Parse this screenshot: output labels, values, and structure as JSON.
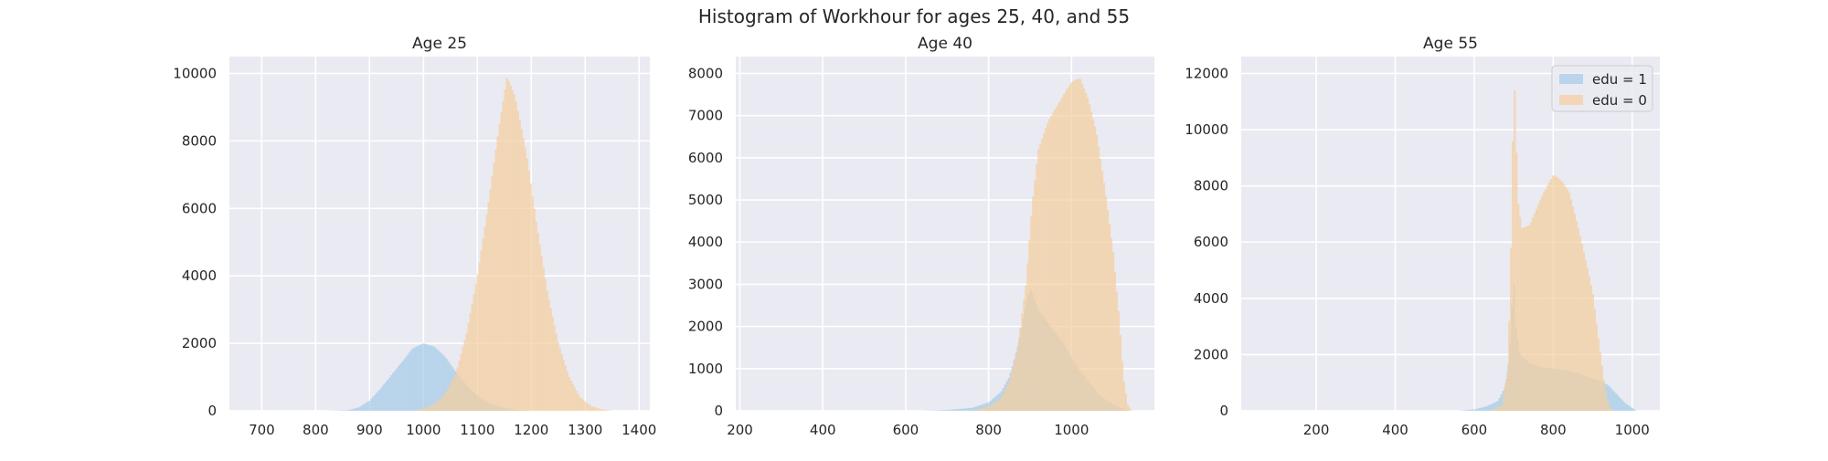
{
  "figure": {
    "suptitle": "Histogram of Workhour for ages 25, 40, and 55",
    "colors": {
      "background": "#eaeaf2",
      "grid": "#ffffff",
      "edu1": "#a6cce8",
      "edu0": "#f5cf9f",
      "overlap": "#b9c6a6",
      "text": "#262626"
    }
  },
  "chart_data": [
    {
      "type": "histogram",
      "title": "Age 25",
      "xlabel": "",
      "ylabel": "",
      "xlim": [
        640,
        1420
      ],
      "ylim": [
        0,
        10500
      ],
      "xticks": [
        700,
        800,
        900,
        1000,
        1100,
        1200,
        1300,
        1400
      ],
      "yticks": [
        0,
        2000,
        4000,
        6000,
        8000,
        10000
      ],
      "grid": true,
      "series": [
        {
          "name": "edu = 1",
          "color": "#a6cce8",
          "points": [
            [
              820,
              0
            ],
            [
              860,
              20
            ],
            [
              880,
              100
            ],
            [
              900,
              300
            ],
            [
              920,
              650
            ],
            [
              940,
              1050
            ],
            [
              960,
              1450
            ],
            [
              980,
              1850
            ],
            [
              1000,
              2000
            ],
            [
              1020,
              1900
            ],
            [
              1040,
              1600
            ],
            [
              1060,
              1150
            ],
            [
              1080,
              750
            ],
            [
              1100,
              450
            ],
            [
              1120,
              250
            ],
            [
              1140,
              120
            ],
            [
              1160,
              60
            ],
            [
              1180,
              20
            ],
            [
              1200,
              0
            ]
          ]
        },
        {
          "name": "edu = 0",
          "color": "#f5cf9f",
          "points": [
            [
              980,
              0
            ],
            [
              1000,
              60
            ],
            [
              1020,
              200
            ],
            [
              1040,
              500
            ],
            [
              1060,
              1100
            ],
            [
              1080,
              2300
            ],
            [
              1100,
              4000
            ],
            [
              1120,
              6100
            ],
            [
              1140,
              8400
            ],
            [
              1155,
              9900
            ],
            [
              1170,
              9300
            ],
            [
              1190,
              7700
            ],
            [
              1210,
              5500
            ],
            [
              1230,
              3500
            ],
            [
              1250,
              2000
            ],
            [
              1270,
              1000
            ],
            [
              1290,
              400
            ],
            [
              1310,
              150
            ],
            [
              1330,
              40
            ],
            [
              1350,
              0
            ]
          ]
        }
      ]
    },
    {
      "type": "histogram",
      "title": "Age 40",
      "xlabel": "",
      "ylabel": "",
      "xlim": [
        190,
        1200
      ],
      "ylim": [
        0,
        8400
      ],
      "xticks": [
        200,
        400,
        600,
        800,
        1000
      ],
      "yticks": [
        0,
        1000,
        2000,
        3000,
        4000,
        5000,
        6000,
        7000,
        8000
      ],
      "grid": true,
      "series": [
        {
          "name": "edu = 1",
          "color": "#a6cce8",
          "points": [
            [
              640,
              0
            ],
            [
              700,
              20
            ],
            [
              760,
              70
            ],
            [
              800,
              200
            ],
            [
              830,
              450
            ],
            [
              850,
              800
            ],
            [
              870,
              1500
            ],
            [
              890,
              2500
            ],
            [
              900,
              2900
            ],
            [
              920,
              2400
            ],
            [
              950,
              2000
            ],
            [
              980,
              1600
            ],
            [
              1010,
              1100
            ],
            [
              1040,
              700
            ],
            [
              1070,
              350
            ],
            [
              1100,
              150
            ],
            [
              1120,
              60
            ],
            [
              1140,
              0
            ]
          ]
        },
        {
          "name": "edu = 0",
          "color": "#f5cf9f",
          "points": [
            [
              760,
              0
            ],
            [
              800,
              100
            ],
            [
              830,
              300
            ],
            [
              850,
              700
            ],
            [
              870,
              1500
            ],
            [
              890,
              3000
            ],
            [
              905,
              4900
            ],
            [
              920,
              6200
            ],
            [
              945,
              6900
            ],
            [
              975,
              7400
            ],
            [
              1000,
              7800
            ],
            [
              1020,
              7900
            ],
            [
              1040,
              7400
            ],
            [
              1060,
              6600
            ],
            [
              1080,
              5300
            ],
            [
              1100,
              3800
            ],
            [
              1115,
              2200
            ],
            [
              1125,
              800
            ],
            [
              1135,
              150
            ],
            [
              1145,
              0
            ]
          ]
        }
      ]
    },
    {
      "type": "histogram",
      "title": "Age 55",
      "xlabel": "",
      "ylabel": "",
      "xlim": [
        10,
        1070
      ],
      "ylim": [
        0,
        12600
      ],
      "xticks": [
        200,
        400,
        600,
        800,
        1000
      ],
      "yticks": [
        0,
        2000,
        4000,
        6000,
        8000,
        10000,
        12000
      ],
      "grid": true,
      "legend": {
        "position": "top-right",
        "entries": [
          "edu = 1",
          "edu = 0"
        ]
      },
      "series": [
        {
          "name": "edu = 1",
          "color": "#a6cce8",
          "points": [
            [
              560,
              0
            ],
            [
              600,
              50
            ],
            [
              630,
              150
            ],
            [
              660,
              350
            ],
            [
              680,
              900
            ],
            [
              690,
              2000
            ],
            [
              695,
              3500
            ],
            [
              700,
              4700
            ],
            [
              705,
              3000
            ],
            [
              715,
              2000
            ],
            [
              740,
              1700
            ],
            [
              770,
              1550
            ],
            [
              800,
              1500
            ],
            [
              830,
              1450
            ],
            [
              860,
              1350
            ],
            [
              890,
              1200
            ],
            [
              920,
              1050
            ],
            [
              940,
              900
            ],
            [
              960,
              600
            ],
            [
              980,
              300
            ],
            [
              1000,
              100
            ],
            [
              1010,
              0
            ]
          ]
        },
        {
          "name": "edu = 0",
          "color": "#f5cf9f",
          "points": [
            [
              640,
              0
            ],
            [
              670,
              200
            ],
            [
              685,
              1500
            ],
            [
              692,
              5000
            ],
            [
              697,
              9000
            ],
            [
              700,
              11900
            ],
            [
              703,
              11200
            ],
            [
              710,
              7500
            ],
            [
              720,
              6500
            ],
            [
              740,
              6600
            ],
            [
              770,
              7600
            ],
            [
              800,
              8400
            ],
            [
              820,
              8200
            ],
            [
              840,
              7800
            ],
            [
              860,
              6700
            ],
            [
              880,
              5500
            ],
            [
              900,
              4200
            ],
            [
              915,
              2500
            ],
            [
              930,
              900
            ],
            [
              940,
              200
            ],
            [
              950,
              0
            ]
          ]
        }
      ]
    }
  ]
}
